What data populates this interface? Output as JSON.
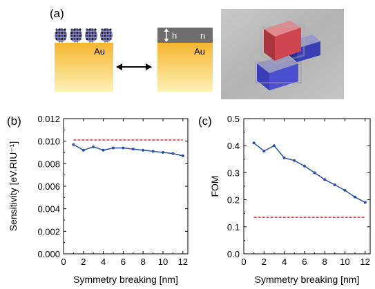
{
  "figure": {
    "panel_a_label": "(a)",
    "au_label_left": "Au",
    "au_label_right": "Au",
    "h_label": "h",
    "n_label": "n"
  },
  "colors": {
    "gold_top": "#f5b52f",
    "gold_bottom": "#fdf3b6",
    "dielectric": "#6e6e6e",
    "molecule": "#3a3a7a",
    "series": "#2a4fa8",
    "reference": "#e8262a",
    "cube_red": "#c8454e",
    "cube_blue": "#3a3fb8",
    "render_bg": "#b5b5b5"
  },
  "icons": {
    "arrow": "double-arrow-icon",
    "molecule": "molecule-icon",
    "render": "nanostructure-render-icon"
  },
  "chart_data": [
    {
      "panel": "(b)",
      "type": "line",
      "xlabel": "Symmetry breaking [nm]",
      "ylabel": "Sensitivity [eV.RIU⁻¹]",
      "xlim": [
        0,
        12.5
      ],
      "ylim": [
        0,
        0.012
      ],
      "x_ticks": [
        "0",
        "2",
        "4",
        "6",
        "8",
        "10",
        "12"
      ],
      "y_ticks": [
        "0.000",
        "0.002",
        "0.004",
        "0.006",
        "0.008",
        "0.010",
        "0.012"
      ],
      "x_tick_values": [
        0,
        2,
        4,
        6,
        8,
        10,
        12
      ],
      "y_tick_values": [
        0,
        0.002,
        0.004,
        0.006,
        0.008,
        0.01,
        0.012
      ],
      "series": [
        {
          "kind": "line-markers",
          "x": [
            1,
            2,
            3,
            4,
            5,
            6,
            7,
            8,
            9,
            10,
            11,
            12
          ],
          "y": [
            0.0097,
            0.0092,
            0.0095,
            0.0092,
            0.0094,
            0.0094,
            0.0093,
            0.0092,
            0.0091,
            0.009,
            0.0089,
            0.0087
          ]
        },
        {
          "kind": "dashed-reference",
          "x": [
            1,
            12
          ],
          "y": [
            0.0101,
            0.0101
          ]
        }
      ]
    },
    {
      "panel": "(c)",
      "type": "line",
      "xlabel": "Symmetry breaking [nm]",
      "ylabel": "FOM",
      "xlim": [
        0,
        12.5
      ],
      "ylim": [
        0,
        0.5
      ],
      "x_ticks": [
        "0",
        "2",
        "4",
        "6",
        "8",
        "10",
        "12"
      ],
      "y_ticks": [
        "0.0",
        "0.1",
        "0.2",
        "0.3",
        "0.4",
        "0.5"
      ],
      "x_tick_values": [
        0,
        2,
        4,
        6,
        8,
        10,
        12
      ],
      "y_tick_values": [
        0,
        0.1,
        0.2,
        0.3,
        0.4,
        0.5
      ],
      "series": [
        {
          "kind": "line-markers",
          "x": [
            1,
            2,
            3,
            4,
            5,
            6,
            7,
            8,
            9,
            10,
            11,
            12
          ],
          "y": [
            0.41,
            0.38,
            0.4,
            0.355,
            0.345,
            0.325,
            0.3,
            0.275,
            0.255,
            0.235,
            0.21,
            0.19
          ]
        },
        {
          "kind": "dashed-reference",
          "x": [
            1,
            12
          ],
          "y": [
            0.135,
            0.135
          ]
        }
      ]
    }
  ]
}
